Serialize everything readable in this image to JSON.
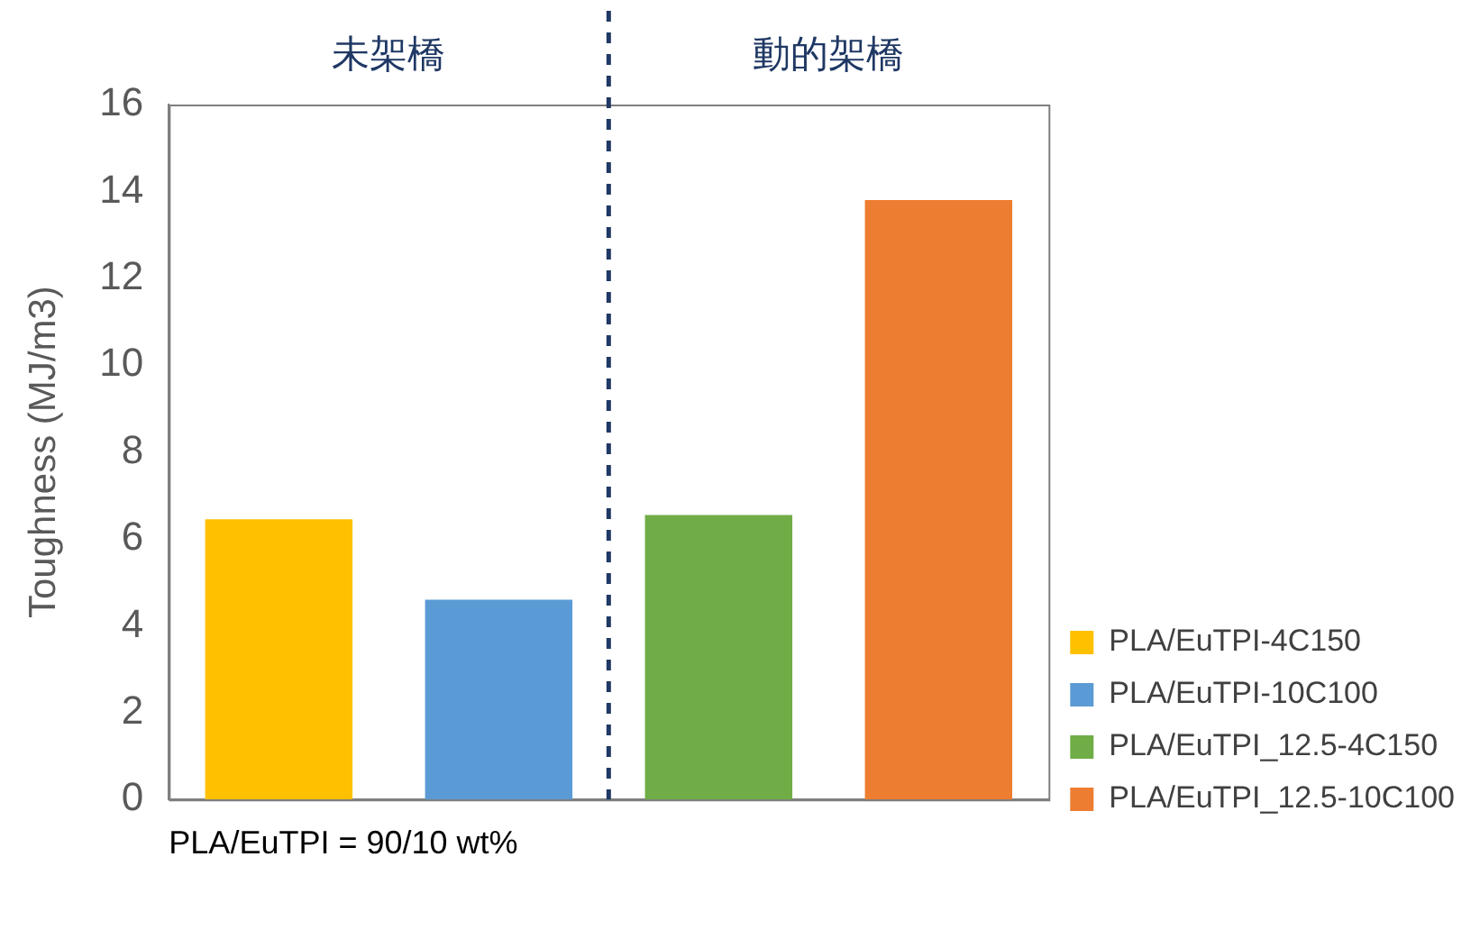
{
  "chart_data": {
    "type": "bar",
    "categories": [
      null,
      null,
      null,
      null
    ],
    "series": [
      {
        "name": "PLA/EuTPI-4C150",
        "color": "#ffc000",
        "values": [
          6.45,
          null,
          null,
          null
        ]
      },
      {
        "name": "PLA/EuTPI-10C100",
        "color": "#5b9bd5",
        "values": [
          null,
          4.6,
          null,
          null
        ]
      },
      {
        "name": "PLA/EuTPI_12.5-4C150",
        "color": "#70ad47",
        "values": [
          null,
          null,
          6.55,
          null
        ]
      },
      {
        "name": "PLA/EuTPI_12.5-10C100",
        "color": "#ed7d31",
        "values": [
          null,
          null,
          null,
          13.8
        ]
      }
    ],
    "ylabel": "Toughness (MJ/m3)",
    "ylim": [
      0,
      16
    ],
    "yticks": [
      0,
      2,
      4,
      6,
      8,
      10,
      12,
      14,
      16
    ],
    "grid": false,
    "legend": "bottom right",
    "annotations": [
      "未架橋",
      "動的架橋",
      "PLA/EuTPI = 90/10 wt%"
    ]
  }
}
